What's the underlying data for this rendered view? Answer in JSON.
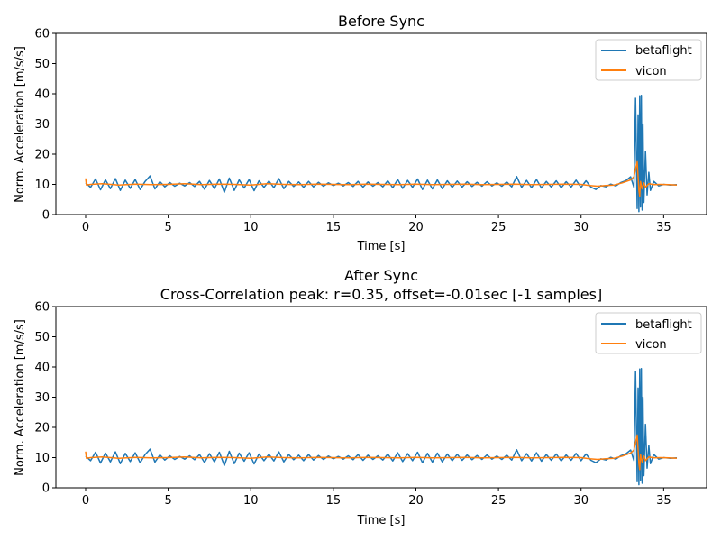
{
  "chart_data": [
    {
      "type": "line",
      "title": "Before Sync",
      "subtitle": "",
      "xlabel": "Time [s]",
      "ylabel": "Norm. Acceleration [m/s/s]",
      "xlim": [
        -1.8,
        37.6
      ],
      "ylim": [
        0,
        60
      ],
      "xticks": [
        0,
        5,
        10,
        15,
        20,
        25,
        30,
        35
      ],
      "yticks": [
        0,
        10,
        20,
        30,
        40,
        50,
        60
      ],
      "legend": "top-right",
      "grid": false,
      "series": [
        {
          "name": "betaflight",
          "color": "#1f77b4",
          "x": [
            0,
            0.3,
            0.6,
            0.9,
            1.2,
            1.5,
            1.8,
            2.1,
            2.4,
            2.7,
            3.0,
            3.3,
            3.6,
            3.9,
            4.2,
            4.5,
            4.8,
            5.1,
            5.4,
            5.7,
            6.0,
            6.3,
            6.6,
            6.9,
            7.2,
            7.5,
            7.8,
            8.1,
            8.4,
            8.7,
            9.0,
            9.3,
            9.6,
            9.9,
            10.2,
            10.5,
            10.8,
            11.1,
            11.4,
            11.7,
            12.0,
            12.3,
            12.6,
            12.9,
            13.2,
            13.5,
            13.8,
            14.1,
            14.4,
            14.7,
            15.0,
            15.3,
            15.6,
            15.9,
            16.2,
            16.5,
            16.8,
            17.1,
            17.4,
            17.7,
            18.0,
            18.3,
            18.6,
            18.9,
            19.2,
            19.5,
            19.8,
            20.1,
            20.4,
            20.7,
            21.0,
            21.3,
            21.6,
            21.9,
            22.2,
            22.5,
            22.8,
            23.1,
            23.4,
            23.7,
            24.0,
            24.3,
            24.6,
            24.9,
            25.2,
            25.5,
            25.8,
            26.1,
            26.4,
            26.7,
            27.0,
            27.3,
            27.6,
            27.9,
            28.2,
            28.5,
            28.8,
            29.1,
            29.4,
            29.7,
            30.0,
            30.3,
            30.6,
            30.9,
            31.2,
            31.5,
            31.8,
            32.1,
            32.4,
            32.7,
            33.0,
            33.2,
            33.3,
            33.4,
            33.45,
            33.5,
            33.55,
            33.6,
            33.65,
            33.7,
            33.75,
            33.8,
            33.9,
            34.0,
            34.1,
            34.2,
            34.4,
            34.7,
            35.0,
            35.4,
            35.8
          ],
          "y": [
            10.5,
            9.0,
            11.8,
            8.2,
            11.5,
            8.6,
            11.9,
            8.0,
            11.4,
            8.7,
            11.6,
            8.3,
            11.0,
            12.8,
            8.5,
            10.9,
            9.2,
            10.6,
            9.4,
            10.4,
            9.5,
            10.6,
            9.3,
            11.0,
            8.4,
            11.3,
            8.6,
            11.8,
            7.4,
            12.1,
            8.0,
            11.5,
            8.8,
            11.6,
            7.9,
            11.2,
            9.0,
            11.1,
            8.9,
            11.9,
            8.6,
            11.0,
            9.3,
            10.8,
            9.0,
            11.0,
            9.2,
            10.7,
            9.4,
            10.5,
            9.6,
            10.4,
            9.5,
            10.6,
            9.3,
            11.0,
            9.1,
            10.8,
            9.4,
            10.6,
            9.2,
            11.2,
            8.9,
            11.6,
            8.7,
            11.3,
            9.0,
            11.8,
            8.3,
            11.4,
            8.5,
            11.5,
            8.6,
            11.2,
            9.0,
            11.1,
            9.1,
            10.9,
            9.3,
            10.7,
            9.4,
            10.9,
            9.5,
            10.5,
            9.4,
            10.8,
            9.2,
            12.6,
            9.0,
            11.3,
            8.9,
            11.6,
            8.8,
            11.0,
            9.1,
            11.2,
            8.9,
            10.9,
            9.1,
            11.4,
            9.0,
            11.2,
            9.1,
            8.3,
            9.6,
            9.2,
            10.1,
            9.5,
            10.6,
            11.2,
            12.5,
            9.0,
            38.5,
            2.0,
            33.0,
            1.0,
            39.3,
            2.5,
            39.5,
            1.5,
            30.0,
            4.0,
            21.0,
            6.5,
            14.0,
            8.0,
            11.0,
            9.5,
            10.0,
            9.8,
            9.9
          ]
        },
        {
          "name": "vicon",
          "color": "#ff7f0e",
          "x": [
            0,
            0.05,
            0.3,
            1.0,
            2.0,
            3.0,
            4.0,
            5.0,
            6.0,
            7.0,
            8.0,
            9.0,
            10.0,
            11.0,
            12.0,
            13.0,
            14.0,
            15.0,
            16.0,
            17.0,
            18.0,
            19.0,
            20.0,
            21.0,
            22.0,
            23.0,
            24.0,
            25.0,
            26.0,
            27.0,
            28.0,
            29.0,
            30.0,
            30.5,
            31.0,
            31.5,
            32.0,
            32.5,
            33.0,
            33.2,
            33.4,
            33.5,
            33.55,
            33.6,
            33.7,
            33.8,
            33.9,
            34.1,
            34.4,
            34.8,
            35.3,
            35.8
          ],
          "y": [
            12.0,
            9.8,
            10.0,
            10.2,
            9.8,
            10.1,
            9.9,
            10.0,
            10.2,
            9.9,
            10.1,
            10.0,
            9.8,
            10.2,
            10.0,
            9.9,
            10.1,
            10.0,
            9.9,
            10.1,
            10.0,
            9.9,
            10.1,
            9.9,
            10.0,
            10.1,
            9.9,
            10.0,
            10.1,
            9.9,
            10.0,
            10.1,
            10.0,
            9.6,
            9.4,
            9.6,
            9.8,
            10.5,
            11.5,
            12.5,
            17.5,
            8.0,
            6.0,
            11.0,
            8.5,
            10.5,
            9.0,
            10.2,
            9.9,
            10.0,
            9.9,
            9.8
          ]
        }
      ]
    },
    {
      "type": "line",
      "title": "After Sync",
      "subtitle": "Cross-Correlation peak: r=0.35, offset=-0.01sec [-1 samples]",
      "xlabel": "Time [s]",
      "ylabel": "Norm. Acceleration [m/s/s]",
      "xlim": [
        -1.8,
        37.6
      ],
      "ylim": [
        0,
        60
      ],
      "xticks": [
        0,
        5,
        10,
        15,
        20,
        25,
        30,
        35
      ],
      "yticks": [
        0,
        10,
        20,
        30,
        40,
        50,
        60
      ],
      "legend": "top-right",
      "grid": false,
      "series": [
        {
          "name": "betaflight",
          "color": "#1f77b4",
          "x": [
            0,
            0.3,
            0.6,
            0.9,
            1.2,
            1.5,
            1.8,
            2.1,
            2.4,
            2.7,
            3.0,
            3.3,
            3.6,
            3.9,
            4.2,
            4.5,
            4.8,
            5.1,
            5.4,
            5.7,
            6.0,
            6.3,
            6.6,
            6.9,
            7.2,
            7.5,
            7.8,
            8.1,
            8.4,
            8.7,
            9.0,
            9.3,
            9.6,
            9.9,
            10.2,
            10.5,
            10.8,
            11.1,
            11.4,
            11.7,
            12.0,
            12.3,
            12.6,
            12.9,
            13.2,
            13.5,
            13.8,
            14.1,
            14.4,
            14.7,
            15.0,
            15.3,
            15.6,
            15.9,
            16.2,
            16.5,
            16.8,
            17.1,
            17.4,
            17.7,
            18.0,
            18.3,
            18.6,
            18.9,
            19.2,
            19.5,
            19.8,
            20.1,
            20.4,
            20.7,
            21.0,
            21.3,
            21.6,
            21.9,
            22.2,
            22.5,
            22.8,
            23.1,
            23.4,
            23.7,
            24.0,
            24.3,
            24.6,
            24.9,
            25.2,
            25.5,
            25.8,
            26.1,
            26.4,
            26.7,
            27.0,
            27.3,
            27.6,
            27.9,
            28.2,
            28.5,
            28.8,
            29.1,
            29.4,
            29.7,
            30.0,
            30.3,
            30.6,
            30.9,
            31.2,
            31.5,
            31.8,
            32.1,
            32.4,
            32.7,
            33.0,
            33.2,
            33.3,
            33.4,
            33.45,
            33.5,
            33.55,
            33.6,
            33.65,
            33.7,
            33.75,
            33.8,
            33.9,
            34.0,
            34.1,
            34.2,
            34.4,
            34.7,
            35.0,
            35.4,
            35.8
          ],
          "y": [
            10.5,
            9.0,
            11.8,
            8.2,
            11.5,
            8.6,
            11.9,
            8.0,
            11.4,
            8.7,
            11.6,
            8.3,
            11.0,
            12.8,
            8.5,
            10.9,
            9.2,
            10.6,
            9.4,
            10.4,
            9.5,
            10.6,
            9.3,
            11.0,
            8.4,
            11.3,
            8.6,
            11.8,
            7.4,
            12.1,
            8.0,
            11.5,
            8.8,
            11.6,
            7.9,
            11.2,
            9.0,
            11.1,
            8.9,
            11.9,
            8.6,
            11.0,
            9.3,
            10.8,
            9.0,
            11.0,
            9.2,
            10.7,
            9.4,
            10.5,
            9.6,
            10.4,
            9.5,
            10.6,
            9.3,
            11.0,
            9.1,
            10.8,
            9.4,
            10.6,
            9.2,
            11.2,
            8.9,
            11.6,
            8.7,
            11.3,
            9.0,
            11.8,
            8.3,
            11.4,
            8.5,
            11.5,
            8.6,
            11.2,
            9.0,
            11.1,
            9.1,
            10.9,
            9.3,
            10.7,
            9.4,
            10.9,
            9.5,
            10.5,
            9.4,
            10.8,
            9.2,
            12.6,
            9.0,
            11.3,
            8.9,
            11.6,
            8.8,
            11.0,
            9.1,
            11.2,
            8.9,
            10.9,
            9.1,
            11.4,
            9.0,
            11.2,
            9.1,
            8.3,
            9.6,
            9.2,
            10.1,
            9.5,
            10.6,
            11.2,
            12.5,
            9.0,
            38.5,
            2.0,
            33.0,
            1.0,
            39.3,
            2.5,
            39.5,
            1.5,
            30.0,
            4.0,
            21.0,
            6.5,
            14.0,
            8.0,
            11.0,
            9.5,
            10.0,
            9.8,
            9.9
          ]
        },
        {
          "name": "vicon",
          "color": "#ff7f0e",
          "x": [
            0,
            0.05,
            0.3,
            1.0,
            2.0,
            3.0,
            4.0,
            5.0,
            6.0,
            7.0,
            8.0,
            9.0,
            10.0,
            11.0,
            12.0,
            13.0,
            14.0,
            15.0,
            16.0,
            17.0,
            18.0,
            19.0,
            20.0,
            21.0,
            22.0,
            23.0,
            24.0,
            25.0,
            26.0,
            27.0,
            28.0,
            29.0,
            30.0,
            30.5,
            31.0,
            31.5,
            32.0,
            32.5,
            33.0,
            33.2,
            33.4,
            33.5,
            33.55,
            33.6,
            33.7,
            33.8,
            33.9,
            34.1,
            34.4,
            34.8,
            35.3,
            35.8
          ],
          "y": [
            12.0,
            9.8,
            10.0,
            10.2,
            9.8,
            10.1,
            9.9,
            10.0,
            10.2,
            9.9,
            10.1,
            10.0,
            9.8,
            10.2,
            10.0,
            9.9,
            10.1,
            10.0,
            9.9,
            10.1,
            10.0,
            9.9,
            10.1,
            9.9,
            10.0,
            10.1,
            9.9,
            10.0,
            10.1,
            9.9,
            10.0,
            10.1,
            10.0,
            9.6,
            9.4,
            9.6,
            9.8,
            10.5,
            11.5,
            12.5,
            17.5,
            8.0,
            6.0,
            11.0,
            8.5,
            10.5,
            9.0,
            10.2,
            9.9,
            10.0,
            9.9,
            9.8
          ]
        }
      ]
    }
  ]
}
